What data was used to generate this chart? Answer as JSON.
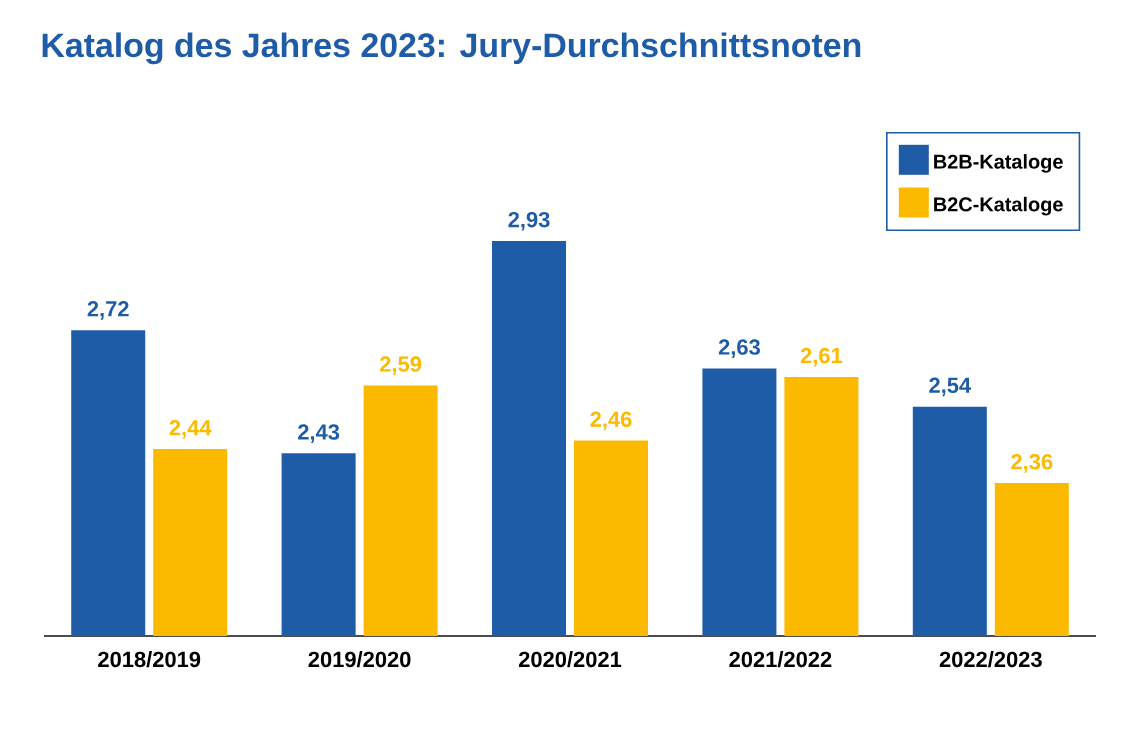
{
  "chart_data": {
    "type": "bar",
    "title": "Katalog des Jahres 2023: Jury-Durchschnittsnoten",
    "categories": [
      "2018/2019",
      "2019/2020",
      "2020/2021",
      "2021/2022",
      "2022/2023"
    ],
    "series": [
      {
        "name": "B2B-Kataloge",
        "color": "#1f5ca8",
        "values": [
          2.72,
          2.43,
          2.93,
          2.63,
          2.54
        ],
        "value_labels": [
          "2,72",
          "2,43",
          "2,93",
          "2,63",
          "2,54"
        ]
      },
      {
        "name": "B2C-Kataloge",
        "color": "#fbb900",
        "values": [
          2.44,
          2.59,
          2.46,
          2.61,
          2.36
        ],
        "value_labels": [
          "2,44",
          "2,59",
          "2,46",
          "2,61",
          "2,36"
        ]
      }
    ],
    "ylim": [
      2,
      3.05
    ],
    "legend": "top right"
  }
}
